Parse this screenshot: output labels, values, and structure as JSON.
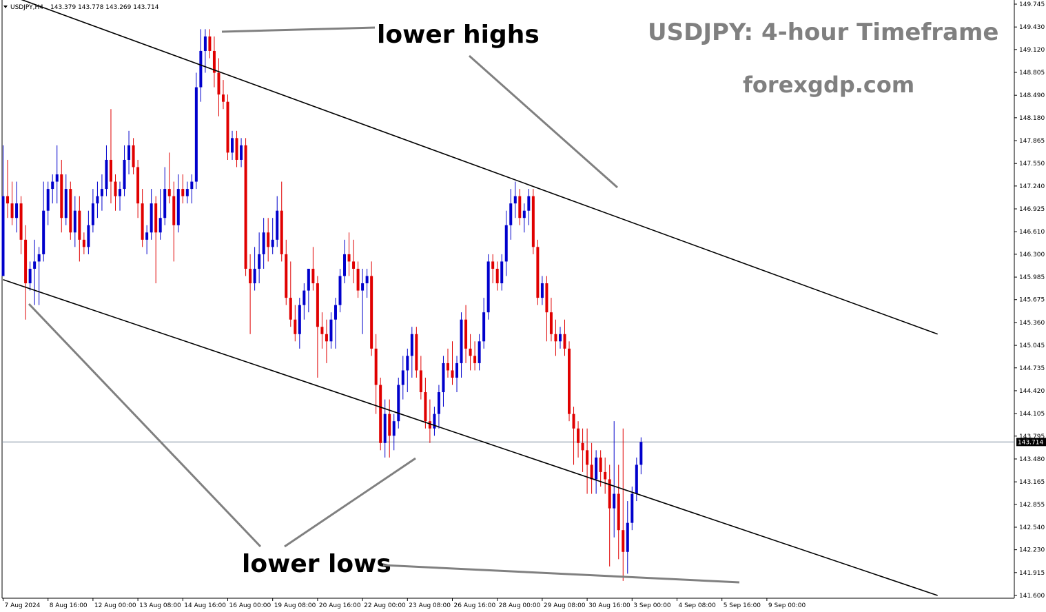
{
  "header": {
    "symbol": "USDJPY,H4",
    "ohlc": "143.379 143.778 143.269 143.714"
  },
  "title": "USDJPY: 4-hour Timeframe",
  "site": "forexgdp.com",
  "annotations": {
    "lower_highs": "lower highs",
    "lower_lows": "lower lows"
  },
  "current_price_label": "143.714",
  "colors": {
    "bull": "#0000cc",
    "bear": "#e00000",
    "wick": "#000000",
    "channel": "#000000",
    "annotation_line": "#808080",
    "price_line": "#8090a0",
    "price_tag_bg": "#000000"
  },
  "chart_data": {
    "type": "candlestick",
    "timeframe": "H4",
    "ylim": [
      141.6,
      149.745
    ],
    "y_ticks": [
      "149.745",
      "149.430",
      "149.120",
      "148.805",
      "148.490",
      "148.180",
      "147.865",
      "147.550",
      "147.240",
      "146.925",
      "146.610",
      "146.300",
      "145.985",
      "145.675",
      "145.360",
      "145.045",
      "144.735",
      "144.420",
      "144.105",
      "143.795",
      "143.480",
      "143.165",
      "142.855",
      "142.540",
      "142.230",
      "141.915",
      "141.600"
    ],
    "x_ticks": [
      {
        "label": "7 Aug 2024",
        "bar": 0
      },
      {
        "label": "8 Aug 16:00",
        "bar": 10
      },
      {
        "label": "12 Aug 00:00",
        "bar": 20
      },
      {
        "label": "13 Aug 08:00",
        "bar": 30
      },
      {
        "label": "14 Aug 16:00",
        "bar": 40
      },
      {
        "label": "16 Aug 00:00",
        "bar": 50
      },
      {
        "label": "19 Aug 08:00",
        "bar": 60
      },
      {
        "label": "20 Aug 16:00",
        "bar": 70
      },
      {
        "label": "22 Aug 00:00",
        "bar": 80
      },
      {
        "label": "23 Aug 08:00",
        "bar": 90
      },
      {
        "label": "26 Aug 16:00",
        "bar": 100
      },
      {
        "label": "28 Aug 00:00",
        "bar": 110
      },
      {
        "label": "29 Aug 08:00",
        "bar": 120
      },
      {
        "label": "30 Aug 16:00",
        "bar": 130
      },
      {
        "label": "3 Sep 00:00",
        "bar": 140
      },
      {
        "label": "4 Sep 08:00",
        "bar": 150
      },
      {
        "label": "5 Sep 16:00",
        "bar": 160
      },
      {
        "label": "9 Sep 00:00",
        "bar": 170
      }
    ],
    "current_price": 143.714,
    "ohlc": [
      [
        146.0,
        147.8,
        146.0,
        147.1
      ],
      [
        147.1,
        147.6,
        146.8,
        147.0
      ],
      [
        147.0,
        147.3,
        146.7,
        146.8
      ],
      [
        146.8,
        147.3,
        146.6,
        147.0
      ],
      [
        147.0,
        147.1,
        146.3,
        146.5
      ],
      [
        146.5,
        146.7,
        145.4,
        145.9
      ],
      [
        145.9,
        146.2,
        145.8,
        146.1
      ],
      [
        146.1,
        146.5,
        145.6,
        146.2
      ],
      [
        146.2,
        146.4,
        145.6,
        146.3
      ],
      [
        146.3,
        147.3,
        146.2,
        146.9
      ],
      [
        146.9,
        147.3,
        146.7,
        147.2
      ],
      [
        147.2,
        147.4,
        147.0,
        147.3
      ],
      [
        147.3,
        147.8,
        147.0,
        147.4
      ],
      [
        147.4,
        147.6,
        146.6,
        146.8
      ],
      [
        146.8,
        147.4,
        146.7,
        147.2
      ],
      [
        147.2,
        147.3,
        146.5,
        146.6
      ],
      [
        146.6,
        147.1,
        146.4,
        146.9
      ],
      [
        146.9,
        147.1,
        146.2,
        146.5
      ],
      [
        146.5,
        146.6,
        146.3,
        146.4
      ],
      [
        146.4,
        146.9,
        146.3,
        146.7
      ],
      [
        146.7,
        147.2,
        146.6,
        147.0
      ],
      [
        147.0,
        147.3,
        146.8,
        147.1
      ],
      [
        147.1,
        147.4,
        146.9,
        147.2
      ],
      [
        147.2,
        147.8,
        147.1,
        147.6
      ],
      [
        147.6,
        148.3,
        147.0,
        147.3
      ],
      [
        147.3,
        147.4,
        146.9,
        147.1
      ],
      [
        147.1,
        147.3,
        146.9,
        147.2
      ],
      [
        147.2,
        147.8,
        147.1,
        147.6
      ],
      [
        147.6,
        148.0,
        147.4,
        147.8
      ],
      [
        147.8,
        147.9,
        147.4,
        147.5
      ],
      [
        147.5,
        147.6,
        146.8,
        147.0
      ],
      [
        147.0,
        147.2,
        146.4,
        146.5
      ],
      [
        146.5,
        146.7,
        146.3,
        146.6
      ],
      [
        146.6,
        147.2,
        146.5,
        147.0
      ],
      [
        147.0,
        147.1,
        145.9,
        146.6
      ],
      [
        146.6,
        147.2,
        146.5,
        146.8
      ],
      [
        146.8,
        147.5,
        146.7,
        147.2
      ],
      [
        147.2,
        147.7,
        147.0,
        147.1
      ],
      [
        147.1,
        147.3,
        146.2,
        146.7
      ],
      [
        146.7,
        147.4,
        146.6,
        147.2
      ],
      [
        147.2,
        147.4,
        147.0,
        147.1
      ],
      [
        147.1,
        147.3,
        147.0,
        147.2
      ],
      [
        147.2,
        147.4,
        147.0,
        147.3
      ],
      [
        147.3,
        148.8,
        147.2,
        148.6
      ],
      [
        148.6,
        149.4,
        148.4,
        149.1
      ],
      [
        149.1,
        149.4,
        148.8,
        149.3
      ],
      [
        149.3,
        149.4,
        149.0,
        149.1
      ],
      [
        149.1,
        149.3,
        148.6,
        148.8
      ],
      [
        148.8,
        149.0,
        148.2,
        148.5
      ],
      [
        148.5,
        148.7,
        148.3,
        148.4
      ],
      [
        148.4,
        148.5,
        147.6,
        147.7
      ],
      [
        147.7,
        148.0,
        147.6,
        147.9
      ],
      [
        147.9,
        148.0,
        147.5,
        147.6
      ],
      [
        147.6,
        147.9,
        147.5,
        147.8
      ],
      [
        147.8,
        147.9,
        146.0,
        146.1
      ],
      [
        146.1,
        146.3,
        145.2,
        145.9
      ],
      [
        145.9,
        146.4,
        145.8,
        146.1
      ],
      [
        146.1,
        146.6,
        145.9,
        146.3
      ],
      [
        146.3,
        146.8,
        146.1,
        146.6
      ],
      [
        146.6,
        146.8,
        146.2,
        146.4
      ],
      [
        146.4,
        146.8,
        146.3,
        146.5
      ],
      [
        146.5,
        147.1,
        146.4,
        146.9
      ],
      [
        146.9,
        147.3,
        146.2,
        146.3
      ],
      [
        146.3,
        146.5,
        145.6,
        145.7
      ],
      [
        145.7,
        146.2,
        145.3,
        145.4
      ],
      [
        145.4,
        145.6,
        145.1,
        145.2
      ],
      [
        145.2,
        145.7,
        145.0,
        145.6
      ],
      [
        145.6,
        145.9,
        145.4,
        145.8
      ],
      [
        145.8,
        146.1,
        145.5,
        146.1
      ],
      [
        146.1,
        146.4,
        145.8,
        145.9
      ],
      [
        145.9,
        146.0,
        144.6,
        145.3
      ],
      [
        145.3,
        145.5,
        145.0,
        145.2
      ],
      [
        145.2,
        145.4,
        144.8,
        145.1
      ],
      [
        145.1,
        145.5,
        145.0,
        145.4
      ],
      [
        145.4,
        145.7,
        145.0,
        145.6
      ],
      [
        145.6,
        146.1,
        145.5,
        146.0
      ],
      [
        146.0,
        146.5,
        145.9,
        146.3
      ],
      [
        146.3,
        146.6,
        146.0,
        146.2
      ],
      [
        146.2,
        146.5,
        145.9,
        146.1
      ],
      [
        146.1,
        146.2,
        145.7,
        145.8
      ],
      [
        145.8,
        146.1,
        145.2,
        145.9
      ],
      [
        145.9,
        146.1,
        145.7,
        146.0
      ],
      [
        146.0,
        146.2,
        144.9,
        145.0
      ],
      [
        145.0,
        145.2,
        144.1,
        144.5
      ],
      [
        144.5,
        144.6,
        143.6,
        143.7
      ],
      [
        143.7,
        144.3,
        143.5,
        144.1
      ],
      [
        144.1,
        144.3,
        143.5,
        143.8
      ],
      [
        143.8,
        144.1,
        143.6,
        144.0
      ],
      [
        144.0,
        144.6,
        143.9,
        144.5
      ],
      [
        144.5,
        144.9,
        144.3,
        144.7
      ],
      [
        144.7,
        145.0,
        144.4,
        144.9
      ],
      [
        144.9,
        145.3,
        144.6,
        145.2
      ],
      [
        145.2,
        145.3,
        144.6,
        144.7
      ],
      [
        144.7,
        144.9,
        144.3,
        144.4
      ],
      [
        144.4,
        144.6,
        143.9,
        144.0
      ],
      [
        144.0,
        144.3,
        143.7,
        143.9
      ],
      [
        143.9,
        144.2,
        143.8,
        144.1
      ],
      [
        144.1,
        144.5,
        143.9,
        144.4
      ],
      [
        144.4,
        144.9,
        144.2,
        144.8
      ],
      [
        144.8,
        145.0,
        144.6,
        144.7
      ],
      [
        144.7,
        145.1,
        144.5,
        144.6
      ],
      [
        144.6,
        144.9,
        144.4,
        144.8
      ],
      [
        144.8,
        145.5,
        144.6,
        145.4
      ],
      [
        145.4,
        145.6,
        144.8,
        145.0
      ],
      [
        145.0,
        145.2,
        144.7,
        144.9
      ],
      [
        144.9,
        145.1,
        144.7,
        144.8
      ],
      [
        144.8,
        145.2,
        144.7,
        145.1
      ],
      [
        145.1,
        145.7,
        145.0,
        145.5
      ],
      [
        145.5,
        146.3,
        145.4,
        146.2
      ],
      [
        146.2,
        146.3,
        145.9,
        146.1
      ],
      [
        146.1,
        146.2,
        145.8,
        145.9
      ],
      [
        145.9,
        146.3,
        145.8,
        146.2
      ],
      [
        146.2,
        146.9,
        146.0,
        146.7
      ],
      [
        146.7,
        147.2,
        146.5,
        147.0
      ],
      [
        147.0,
        147.3,
        146.8,
        147.1
      ],
      [
        147.1,
        147.2,
        146.7,
        146.8
      ],
      [
        146.8,
        147.0,
        146.6,
        146.9
      ],
      [
        146.9,
        147.2,
        146.7,
        147.1
      ],
      [
        147.1,
        147.2,
        146.3,
        146.4
      ],
      [
        146.4,
        146.5,
        145.6,
        145.7
      ],
      [
        145.7,
        146.0,
        145.6,
        145.9
      ],
      [
        145.9,
        146.0,
        145.1,
        145.5
      ],
      [
        145.5,
        145.7,
        145.1,
        145.2
      ],
      [
        145.2,
        145.4,
        144.9,
        145.1
      ],
      [
        145.1,
        145.3,
        145.0,
        145.2
      ],
      [
        145.2,
        145.4,
        144.9,
        145.0
      ],
      [
        145.0,
        145.1,
        144.0,
        144.1
      ],
      [
        144.1,
        144.2,
        143.4,
        143.9
      ],
      [
        143.9,
        144.0,
        143.5,
        143.7
      ],
      [
        143.7,
        143.9,
        143.3,
        143.6
      ],
      [
        143.6,
        143.9,
        143.0,
        143.4
      ],
      [
        143.4,
        143.7,
        143.0,
        143.2
      ],
      [
        143.2,
        143.6,
        143.0,
        143.5
      ],
      [
        143.5,
        143.6,
        143.1,
        143.3
      ],
      [
        143.3,
        143.5,
        143.0,
        143.2
      ],
      [
        143.2,
        143.4,
        142.0,
        142.8
      ],
      [
        142.8,
        144.0,
        142.4,
        143.0
      ],
      [
        143.0,
        143.4,
        142.1,
        142.5
      ],
      [
        142.5,
        143.9,
        141.8,
        142.2
      ],
      [
        142.2,
        142.9,
        141.9,
        142.6
      ],
      [
        142.6,
        143.1,
        142.5,
        143.0
      ],
      [
        143.0,
        143.5,
        142.9,
        143.4
      ],
      [
        143.4,
        143.778,
        143.269,
        143.714
      ]
    ],
    "lines": {
      "upper_channel": {
        "from": [
          0,
          149.9
        ],
        "to": [
          208,
          145.2
        ]
      },
      "lower_channel": {
        "from": [
          0,
          145.95
        ],
        "to": [
          208,
          141.6
        ]
      }
    }
  }
}
